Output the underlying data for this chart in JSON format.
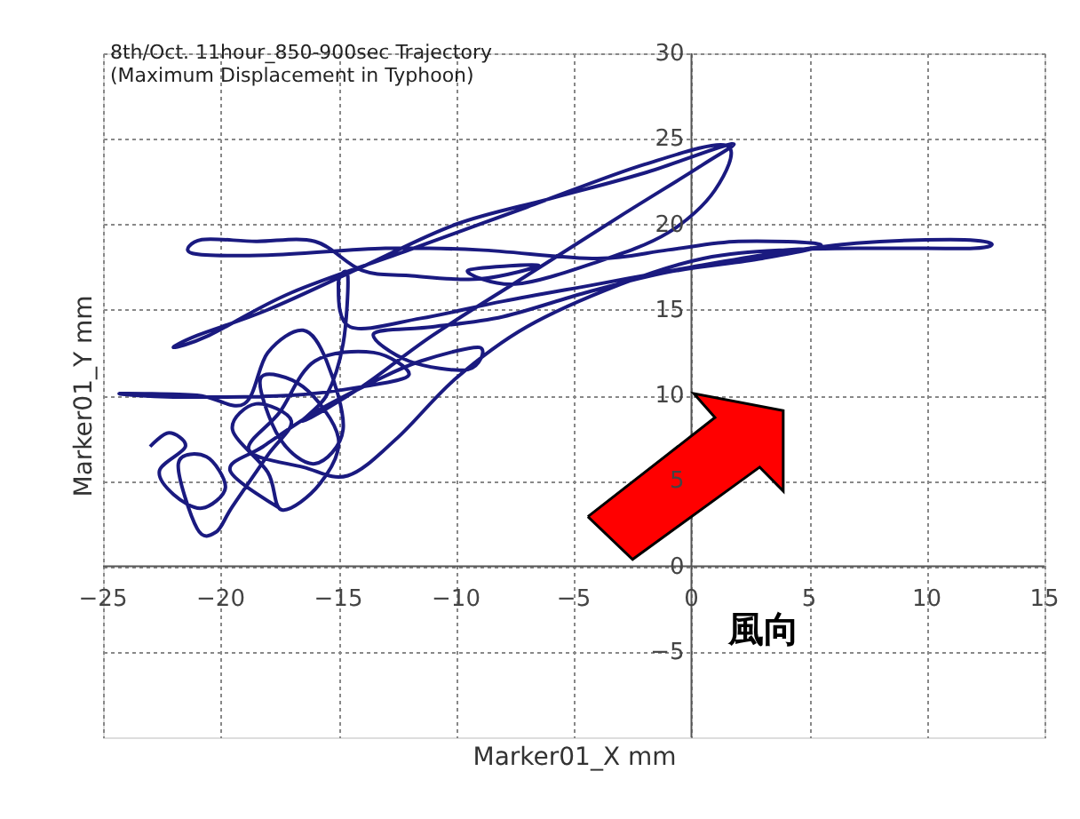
{
  "chart_data": {
    "type": "line",
    "title": [
      "8th/Oct. 11hour_850-900sec Trajectory",
      "(Maximum Displacement in Typhoon)"
    ],
    "xlabel": "Marker01_X  mm",
    "ylabel": "Marker01_Y  mm",
    "annotations": [
      "風向"
    ],
    "xlim": [
      -25,
      15
    ],
    "ylim": [
      -10,
      30
    ],
    "xticks": [
      -25,
      -20,
      -15,
      -10,
      -5,
      0,
      5,
      10,
      15
    ],
    "yticks": [
      -5,
      0,
      5,
      10,
      15,
      20,
      25,
      30
    ],
    "grid": true,
    "marker": "none",
    "line_style": "solid",
    "series": [
      {
        "color": "#1a1a80",
        "x": [
          -23.0,
          -22.2,
          -21.5,
          -22.6,
          -22.0,
          -20.8,
          -19.8,
          -20.6,
          -21.8,
          -21.0,
          -20.2,
          -19.5,
          -18.0,
          -17.0,
          -18.5,
          -19.5,
          -18.0,
          -17.4,
          -15.8,
          -15.0,
          -16.5,
          -18.3,
          -17.5,
          -16.0,
          -14.8,
          -15.5,
          -16.5,
          -18.0,
          -19.0,
          -21.0,
          -24.3,
          -22.0,
          -17.0,
          -14.0,
          -12.0,
          -13.5,
          -16.0,
          -17.5,
          -18.8,
          -16.5,
          -14.6,
          -12.5,
          -10.0,
          -7.0,
          -3.0,
          0.5,
          4.0,
          8.0,
          12.0,
          12.7,
          11.0,
          7.0,
          3.5,
          0,
          -4,
          -8,
          -11.5,
          -14.5,
          -15.0,
          -14.6,
          -14.8,
          -15.5,
          -16.5,
          -14.0,
          -11.0,
          -7.0,
          -3.0,
          0.5,
          1.7,
          -2.0,
          -6.0,
          -10.0,
          -14.0,
          -18.0,
          -21.0,
          -22.0,
          -20.5,
          -17.0,
          -12.0,
          -7.0,
          -2.0,
          1.5,
          1.0,
          -1.0,
          -4.0,
          -7.5,
          -9.5,
          -6.5,
          -9.0,
          -12.0,
          -14.0,
          -16.0,
          -18.5,
          -20.8,
          -21.2,
          -18.0,
          -13.0,
          -9.0,
          -4.0,
          -1.0,
          2.0,
          5.5,
          3.0,
          -1.0,
          -4.5,
          -8.0,
          -11.0,
          -13.5,
          -12.0,
          -9.5,
          -9.0,
          -11.5,
          -13.5,
          -16.0,
          -18.2,
          -19.6,
          -17.5
        ],
        "values": [
          7.0,
          7.8,
          7.0,
          5.6,
          4.2,
          3.4,
          4.6,
          6.4,
          6.0,
          2.2,
          2.0,
          3.5,
          6.5,
          8.5,
          9.5,
          8.0,
          5.5,
          3.3,
          4.8,
          7.5,
          10.5,
          11.0,
          7.5,
          6.0,
          8.0,
          12.0,
          13.8,
          12.5,
          9.5,
          10.0,
          10.1,
          9.9,
          10.0,
          10.5,
          11.2,
          12.5,
          12.0,
          9.0,
          6.8,
          5.8,
          5.3,
          7.5,
          11.0,
          14.0,
          16.5,
          18.0,
          18.5,
          18.6,
          18.6,
          18.9,
          19.1,
          18.9,
          18.3,
          17.5,
          16.5,
          15.5,
          14.5,
          14.0,
          16.5,
          17.0,
          13.0,
          10.0,
          8.5,
          10.5,
          13.5,
          17.0,
          20.5,
          23.5,
          24.7,
          23.0,
          21.5,
          20.0,
          17.5,
          15.0,
          13.5,
          12.8,
          13.5,
          16.0,
          18.5,
          21.0,
          23.5,
          24.6,
          22.0,
          19.5,
          17.8,
          16.5,
          17.3,
          17.6,
          16.8,
          17.0,
          17.3,
          19.0,
          19.0,
          19.1,
          18.3,
          18.2,
          18.6,
          18.5,
          18.0,
          18.5,
          19.0,
          18.8,
          18.0,
          17.2,
          16.0,
          14.6,
          14.0,
          13.6,
          12.0,
          11.5,
          12.8,
          12.0,
          10.8,
          9.0,
          7.0,
          5.6,
          3.4
        ]
      }
    ]
  }
}
